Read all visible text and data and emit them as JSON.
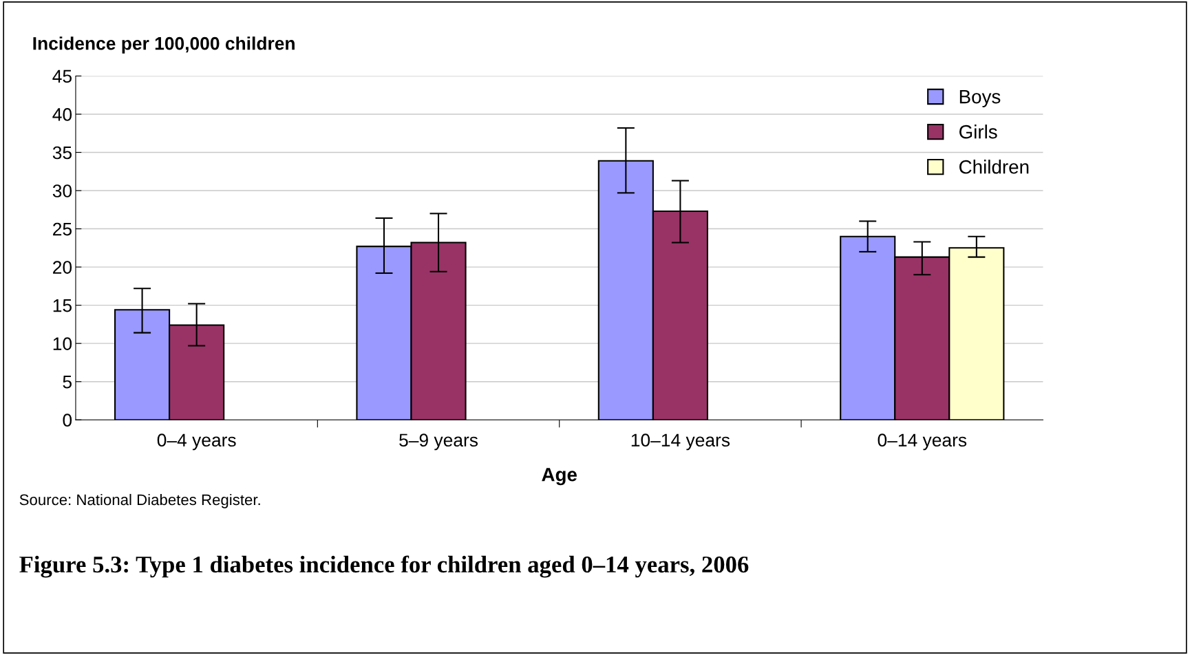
{
  "chart_data": {
    "type": "bar",
    "title": "Figure 5.3: Type 1 diabetes incidence for children aged 0–14 years, 2006",
    "ylabel": "Incidence per 100,000 children",
    "xlabel": "Age",
    "annotations": [
      "Source: National Diabetes Register."
    ],
    "categories": [
      "0–4 years",
      "5–9 years",
      "10–14 years",
      "0–14 years"
    ],
    "series": [
      {
        "name": "Boys",
        "color": "#9999ff",
        "values": [
          14.4,
          22.7,
          33.9,
          24.0
        ],
        "errors": [
          [
            11.4,
            17.2
          ],
          [
            19.2,
            26.4
          ],
          [
            29.7,
            38.2
          ],
          [
            22.0,
            26.0
          ]
        ]
      },
      {
        "name": "Girls",
        "color": "#993366",
        "values": [
          12.4,
          23.2,
          27.3,
          21.3
        ],
        "errors": [
          [
            9.7,
            15.2
          ],
          [
            19.4,
            27.0
          ],
          [
            23.2,
            31.3
          ],
          [
            19.0,
            23.3
          ]
        ]
      },
      {
        "name": "Children",
        "color": "#ffffcc",
        "values": [
          null,
          null,
          null,
          22.5
        ],
        "errors": [
          null,
          null,
          null,
          [
            21.3,
            24.0
          ]
        ]
      }
    ],
    "ylim": [
      0,
      45
    ],
    "yticks": [
      0,
      5,
      10,
      15,
      20,
      25,
      30,
      35,
      40,
      45
    ],
    "grid": "y",
    "legend": "top right"
  }
}
